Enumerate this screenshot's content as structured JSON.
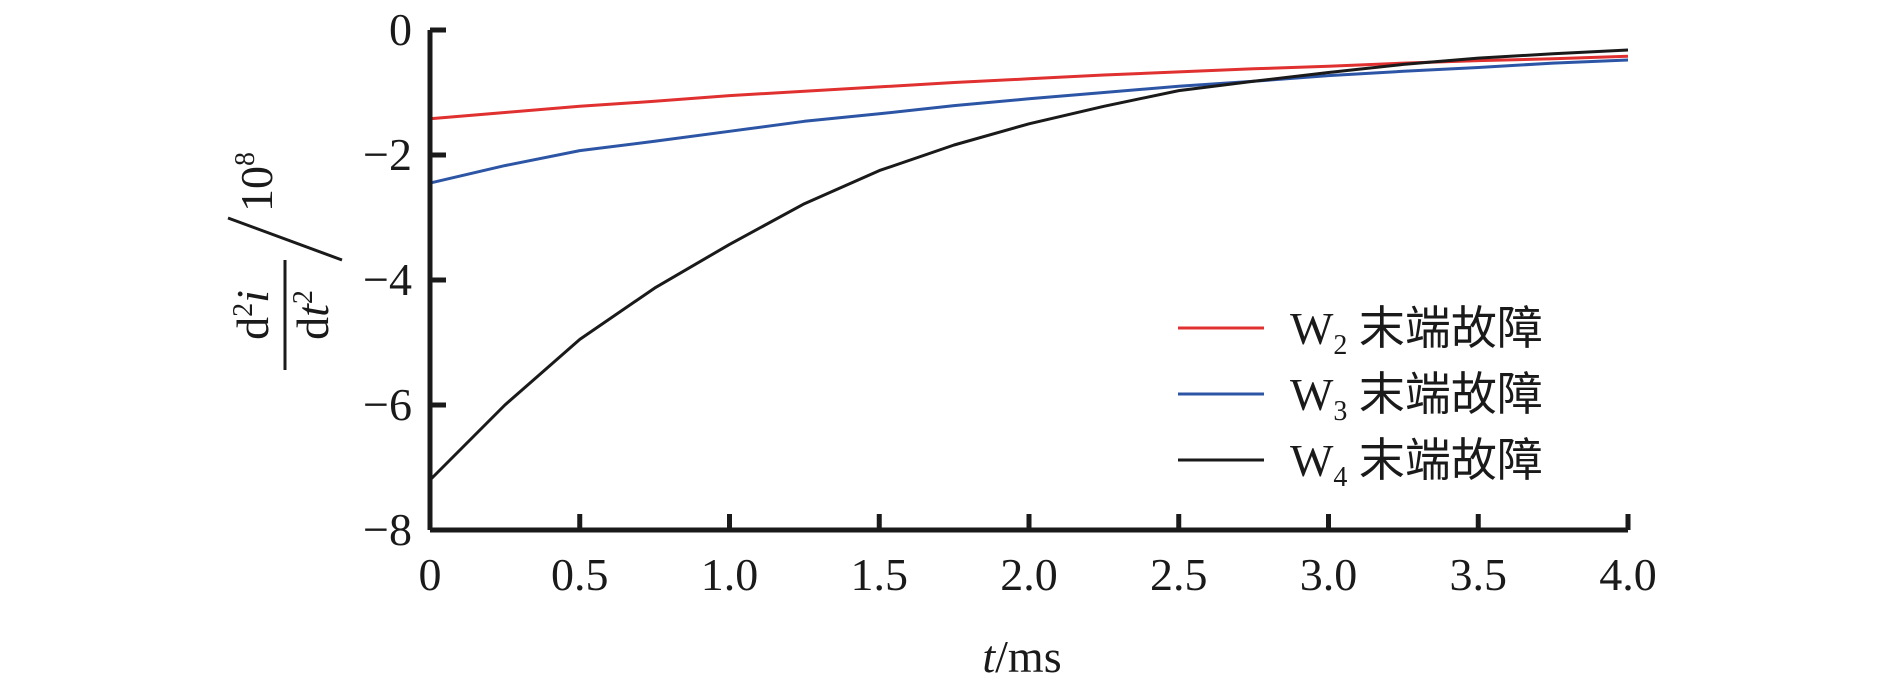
{
  "chart_data": {
    "type": "line",
    "xlabel": {
      "var": "t",
      "unit": "/ms"
    },
    "ylabel": {
      "num_d": "d",
      "num_sup": "2",
      "num_var": "i",
      "den_d": "d",
      "den_var": "t",
      "den_sup": "2",
      "scale": "10",
      "scale_sup": "8"
    },
    "xlim": [
      0,
      4.0
    ],
    "ylim": [
      -8,
      0
    ],
    "x_ticks": [
      {
        "value": 0,
        "label": "0"
      },
      {
        "value": 0.5,
        "label": "0.5"
      },
      {
        "value": 1.0,
        "label": "1.0"
      },
      {
        "value": 1.5,
        "label": "1.5"
      },
      {
        "value": 2.0,
        "label": "2.0"
      },
      {
        "value": 2.5,
        "label": "2.5"
      },
      {
        "value": 3.0,
        "label": "3.0"
      },
      {
        "value": 3.5,
        "label": "3.5"
      },
      {
        "value": 4.0,
        "label": "4.0"
      }
    ],
    "y_ticks": [
      {
        "value": 0,
        "label": "0"
      },
      {
        "value": -2,
        "label": "−2"
      },
      {
        "value": -4,
        "label": "−4"
      },
      {
        "value": -6,
        "label": "−6"
      },
      {
        "value": -8,
        "label": "−8"
      }
    ],
    "grid": false,
    "legend_position": "right",
    "series": [
      {
        "name": "W₂ 末端故障",
        "legend_main": "W",
        "legend_sub": "2",
        "legend_suffix": " 末端故障",
        "color": "#e03030",
        "x": [
          0,
          0.25,
          0.5,
          0.75,
          1.0,
          1.25,
          1.5,
          1.75,
          2.0,
          2.25,
          2.5,
          2.75,
          3.0,
          3.25,
          3.5,
          3.75,
          4.0
        ],
        "y": [
          -1.42,
          -1.32,
          -1.22,
          -1.14,
          -1.05,
          -0.98,
          -0.91,
          -0.84,
          -0.78,
          -0.72,
          -0.67,
          -0.62,
          -0.58,
          -0.53,
          -0.49,
          -0.46,
          -0.42
        ]
      },
      {
        "name": "W₃ 末端故障",
        "legend_main": "W",
        "legend_sub": "3",
        "legend_suffix": " 末端故障",
        "color": "#2d55a5",
        "x": [
          0,
          0.25,
          0.5,
          0.75,
          1.0,
          1.25,
          1.5,
          1.75,
          2.0,
          2.25,
          2.5,
          2.75,
          3.0,
          3.25,
          3.5,
          3.75,
          4.0
        ],
        "y": [
          -2.45,
          -2.17,
          -1.93,
          -1.78,
          -1.62,
          -1.46,
          -1.34,
          -1.21,
          -1.1,
          -1.0,
          -0.9,
          -0.82,
          -0.73,
          -0.66,
          -0.6,
          -0.53,
          -0.48
        ]
      },
      {
        "name": "W₄ 末端故障",
        "legend_main": "W",
        "legend_sub": "4",
        "legend_suffix": " 末端故障",
        "color": "#1a1a1a",
        "x": [
          0,
          0.25,
          0.5,
          0.75,
          1.0,
          1.25,
          1.5,
          1.75,
          2.0,
          2.25,
          2.5,
          2.75,
          3.0,
          3.25,
          3.5,
          3.75,
          4.0
        ],
        "y": [
          -7.2,
          -6.0,
          -4.95,
          -4.13,
          -3.43,
          -2.78,
          -2.25,
          -1.84,
          -1.5,
          -1.22,
          -0.97,
          -0.82,
          -0.68,
          -0.55,
          -0.45,
          -0.38,
          -0.32
        ]
      }
    ]
  }
}
